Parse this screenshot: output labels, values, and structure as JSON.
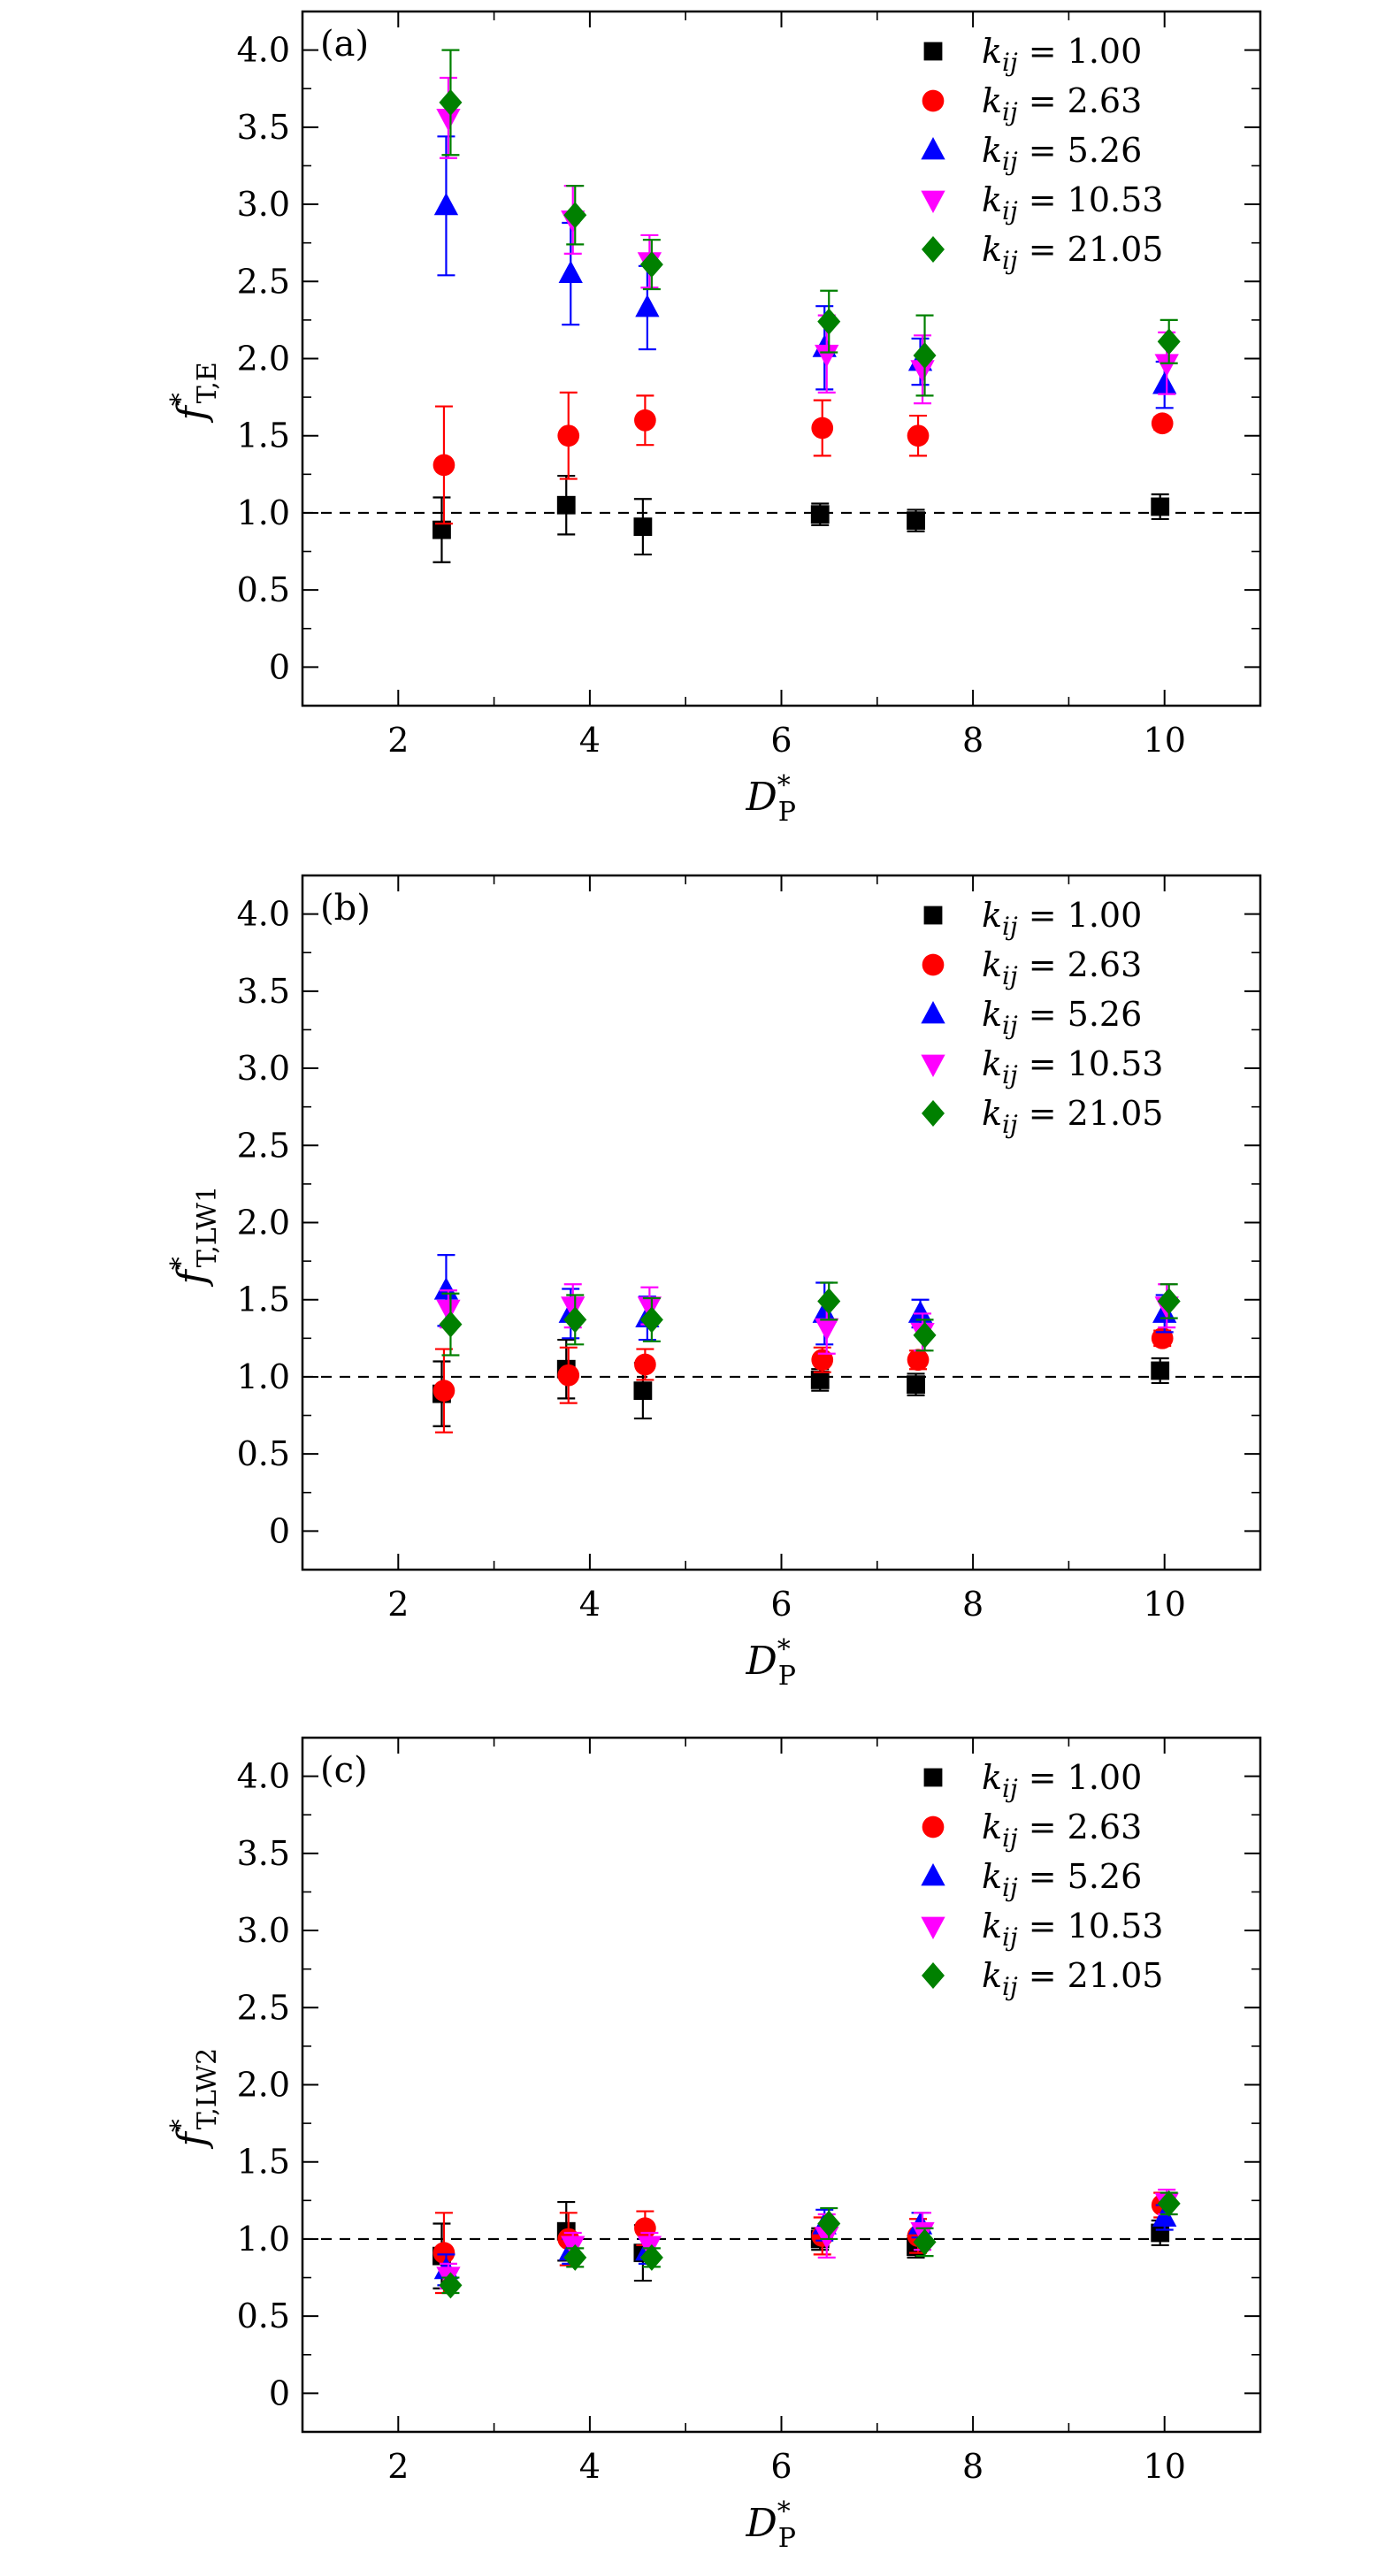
{
  "chart_data": [
    {
      "type": "scatter",
      "panel_label": "(a)",
      "ylabel": "f*T,E",
      "xlabel": "D*P",
      "xlim": [
        1,
        11
      ],
      "ylim": [
        -0.25,
        4.25
      ],
      "xticks": [
        2,
        4,
        6,
        8,
        10
      ],
      "yticks": [
        0,
        0.5,
        1.0,
        1.5,
        2.0,
        2.5,
        3.0,
        3.5,
        4.0
      ],
      "ytick_labels": [
        "0",
        "0.5",
        "1.0",
        "1.5",
        "2.0",
        "2.5",
        "3.0",
        "3.5",
        "4.0"
      ],
      "reference_line_y": 1.0,
      "legend_position": "top-right",
      "x": [
        2.5,
        3.8,
        4.6,
        6.45,
        7.45,
        10.0
      ],
      "series": [
        {
          "name": "k_ij = 1.00",
          "marker": "square",
          "color": "#000000",
          "values": [
            0.89,
            1.05,
            0.91,
            0.99,
            0.95,
            1.04
          ],
          "errors": [
            0.21,
            0.19,
            0.18,
            0.07,
            0.07,
            0.08
          ]
        },
        {
          "name": "k_ij = 2.63",
          "marker": "circle",
          "color": "#ff0000",
          "values": [
            1.31,
            1.5,
            1.6,
            1.55,
            1.5,
            1.58
          ],
          "errors": [
            0.38,
            0.28,
            0.16,
            0.18,
            0.13,
            0.04
          ]
        },
        {
          "name": "k_ij = 5.26",
          "marker": "triangle-up",
          "color": "#0000ff",
          "values": [
            2.99,
            2.55,
            2.33,
            2.07,
            1.98,
            1.83
          ],
          "errors": [
            0.45,
            0.33,
            0.27,
            0.27,
            0.15,
            0.15
          ]
        },
        {
          "name": "k_ij = 10.53",
          "marker": "triangle-down",
          "color": "#ff00ff",
          "values": [
            3.56,
            2.9,
            2.63,
            2.03,
            1.93,
            1.97
          ],
          "errors": [
            0.26,
            0.22,
            0.17,
            0.25,
            0.22,
            0.2
          ]
        },
        {
          "name": "k_ij = 21.05",
          "marker": "diamond",
          "color": "#008000",
          "values": [
            3.66,
            2.93,
            2.61,
            2.24,
            2.02,
            2.11
          ],
          "errors": [
            0.34,
            0.19,
            0.16,
            0.2,
            0.26,
            0.14
          ]
        }
      ]
    },
    {
      "type": "scatter",
      "panel_label": "(b)",
      "ylabel": "f*T,LW1",
      "xlabel": "D*P",
      "xlim": [
        1,
        11
      ],
      "ylim": [
        -0.25,
        4.25
      ],
      "xticks": [
        2,
        4,
        6,
        8,
        10
      ],
      "yticks": [
        0,
        0.5,
        1.0,
        1.5,
        2.0,
        2.5,
        3.0,
        3.5,
        4.0
      ],
      "ytick_labels": [
        "0",
        "0.5",
        "1.0",
        "1.5",
        "2.0",
        "2.5",
        "3.0",
        "3.5",
        "4.0"
      ],
      "reference_line_y": 1.0,
      "legend_position": "top-right",
      "x": [
        2.5,
        3.8,
        4.6,
        6.45,
        7.45,
        10.0
      ],
      "series": [
        {
          "name": "k_ij = 1.00",
          "marker": "square",
          "color": "#000000",
          "values": [
            0.89,
            1.05,
            0.91,
            0.98,
            0.95,
            1.04
          ],
          "errors": [
            0.21,
            0.19,
            0.18,
            0.07,
            0.07,
            0.08
          ]
        },
        {
          "name": "k_ij = 2.63",
          "marker": "circle",
          "color": "#ff0000",
          "values": [
            0.91,
            1.01,
            1.08,
            1.11,
            1.11,
            1.25
          ],
          "errors": [
            0.27,
            0.18,
            0.1,
            0.08,
            0.06,
            0.05
          ]
        },
        {
          "name": "k_ij = 5.26",
          "marker": "triangle-up",
          "color": "#0000ff",
          "values": [
            1.56,
            1.41,
            1.38,
            1.41,
            1.41,
            1.41
          ],
          "errors": [
            0.23,
            0.16,
            0.14,
            0.2,
            0.09,
            0.12
          ]
        },
        {
          "name": "k_ij = 10.53",
          "marker": "triangle-down",
          "color": "#ff00ff",
          "values": [
            1.44,
            1.46,
            1.46,
            1.32,
            1.29,
            1.46
          ],
          "errors": [
            0.12,
            0.14,
            0.12,
            0.17,
            0.12,
            0.14
          ]
        },
        {
          "name": "k_ij = 21.05",
          "marker": "diamond",
          "color": "#008000",
          "values": [
            1.34,
            1.37,
            1.37,
            1.49,
            1.27,
            1.49
          ],
          "errors": [
            0.2,
            0.16,
            0.14,
            0.12,
            0.1,
            0.11
          ]
        }
      ]
    },
    {
      "type": "scatter",
      "panel_label": "(c)",
      "ylabel": "f*T,LW2",
      "xlabel": "D*P",
      "xlim": [
        1,
        11
      ],
      "ylim": [
        -0.25,
        4.25
      ],
      "xticks": [
        2,
        4,
        6,
        8,
        10
      ],
      "yticks": [
        0,
        0.5,
        1.0,
        1.5,
        2.0,
        2.5,
        3.0,
        3.5,
        4.0
      ],
      "ytick_labels": [
        "0",
        "0.5",
        "1.0",
        "1.5",
        "2.0",
        "2.5",
        "3.0",
        "3.5",
        "4.0"
      ],
      "reference_line_y": 1.0,
      "legend_position": "top-right",
      "x": [
        2.5,
        3.8,
        4.6,
        6.45,
        7.45,
        10.0
      ],
      "series": [
        {
          "name": "k_ij = 1.00",
          "marker": "square",
          "color": "#000000",
          "values": [
            0.89,
            1.05,
            0.91,
            1.0,
            0.95,
            1.04
          ],
          "errors": [
            0.21,
            0.19,
            0.18,
            0.07,
            0.07,
            0.08
          ]
        },
        {
          "name": "k_ij = 2.63",
          "marker": "circle",
          "color": "#ff0000",
          "values": [
            0.91,
            1.0,
            1.07,
            1.02,
            1.02,
            1.22
          ],
          "errors": [
            0.26,
            0.17,
            0.11,
            0.12,
            0.11,
            0.08
          ]
        },
        {
          "name": "k_ij = 5.26",
          "marker": "triangle-up",
          "color": "#0000ff",
          "values": [
            0.8,
            0.92,
            0.92,
            1.09,
            1.09,
            1.14
          ],
          "errors": [
            0.1,
            0.08,
            0.08,
            0.1,
            0.08,
            0.08
          ]
        },
        {
          "name": "k_ij = 10.53",
          "marker": "triangle-down",
          "color": "#ff00ff",
          "values": [
            0.76,
            0.96,
            0.96,
            1.02,
            1.05,
            1.24
          ],
          "errors": [
            0.08,
            0.08,
            0.08,
            0.14,
            0.12,
            0.08
          ]
        },
        {
          "name": "k_ij = 21.05",
          "marker": "diamond",
          "color": "#008000",
          "values": [
            0.7,
            0.88,
            0.88,
            1.1,
            0.98,
            1.23
          ],
          "errors": [
            0.05,
            0.06,
            0.06,
            0.1,
            0.09,
            0.07
          ]
        }
      ]
    }
  ]
}
